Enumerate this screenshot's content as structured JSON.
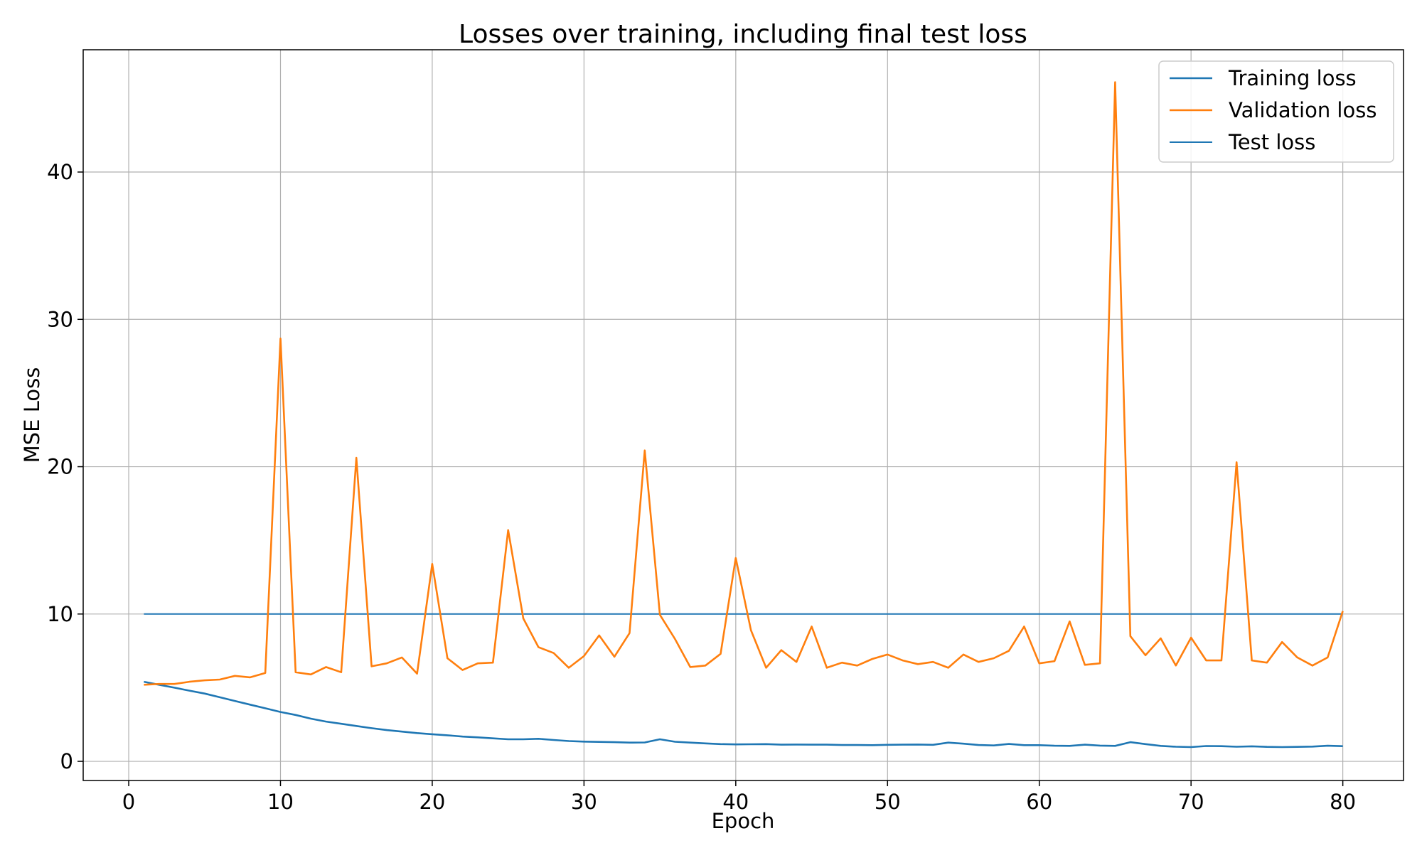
{
  "chart_data": {
    "type": "line",
    "title": "Losses over training, including final test loss",
    "xlabel": "Epoch",
    "ylabel": "MSE Loss",
    "xlim": [
      -3,
      84
    ],
    "ylim": [
      -1.3,
      48.3
    ],
    "xticks": [
      0,
      10,
      20,
      30,
      40,
      50,
      60,
      70,
      80
    ],
    "yticks": [
      0,
      10,
      20,
      30,
      40
    ],
    "grid": true,
    "legend_position": "top-right",
    "series": [
      {
        "name": "Training loss",
        "color": "#1f77b4",
        "x": [
          1,
          2,
          3,
          4,
          5,
          6,
          7,
          8,
          9,
          10,
          11,
          12,
          13,
          14,
          15,
          16,
          17,
          18,
          19,
          20,
          21,
          22,
          23,
          24,
          25,
          26,
          27,
          28,
          29,
          30,
          31,
          32,
          33,
          34,
          35,
          36,
          37,
          38,
          39,
          40,
          41,
          42,
          43,
          44,
          45,
          46,
          47,
          48,
          49,
          50,
          51,
          52,
          53,
          54,
          55,
          56,
          57,
          58,
          59,
          60,
          61,
          62,
          63,
          64,
          65,
          66,
          67,
          68,
          69,
          70,
          71,
          72,
          73,
          74,
          75,
          76,
          77,
          78,
          79,
          80
        ],
        "values": [
          5.4,
          5.2,
          5.0,
          4.8,
          4.6,
          4.35,
          4.1,
          3.85,
          3.6,
          3.35,
          3.15,
          2.9,
          2.7,
          2.55,
          2.4,
          2.25,
          2.12,
          2.02,
          1.92,
          1.84,
          1.77,
          1.68,
          1.63,
          1.56,
          1.5,
          1.5,
          1.53,
          1.45,
          1.38,
          1.34,
          1.32,
          1.3,
          1.27,
          1.28,
          1.5,
          1.33,
          1.27,
          1.22,
          1.17,
          1.15,
          1.16,
          1.17,
          1.13,
          1.14,
          1.13,
          1.13,
          1.11,
          1.11,
          1.1,
          1.12,
          1.13,
          1.14,
          1.12,
          1.27,
          1.2,
          1.11,
          1.08,
          1.18,
          1.1,
          1.1,
          1.06,
          1.05,
          1.13,
          1.07,
          1.05,
          1.3,
          1.17,
          1.05,
          0.99,
          0.97,
          1.04,
          1.03,
          0.99,
          1.02,
          0.98,
          0.97,
          0.98,
          1.0,
          1.06,
          1.03
        ]
      },
      {
        "name": "Validation loss",
        "color": "#ff7f0e",
        "x": [
          1,
          2,
          3,
          4,
          5,
          6,
          7,
          8,
          9,
          10,
          11,
          12,
          13,
          14,
          15,
          16,
          17,
          18,
          19,
          20,
          21,
          22,
          23,
          24,
          25,
          26,
          27,
          28,
          29,
          30,
          31,
          32,
          33,
          34,
          35,
          36,
          37,
          38,
          39,
          40,
          41,
          42,
          43,
          44,
          45,
          46,
          47,
          48,
          49,
          50,
          51,
          52,
          53,
          54,
          55,
          56,
          57,
          58,
          59,
          60,
          61,
          62,
          63,
          64,
          65,
          66,
          67,
          68,
          69,
          70,
          71,
          72,
          73,
          74,
          75,
          76,
          77,
          78,
          79,
          80
        ],
        "values": [
          5.2,
          5.25,
          5.25,
          5.4,
          5.5,
          5.55,
          5.8,
          5.7,
          6.0,
          28.7,
          6.05,
          5.9,
          6.4,
          6.05,
          20.6,
          6.45,
          6.65,
          7.05,
          5.95,
          13.4,
          7.0,
          6.2,
          6.65,
          6.7,
          15.7,
          9.7,
          7.75,
          7.35,
          6.35,
          7.15,
          8.55,
          7.1,
          8.7,
          21.1,
          9.95,
          8.3,
          6.4,
          6.5,
          7.3,
          13.8,
          8.9,
          6.35,
          7.55,
          6.75,
          9.15,
          6.35,
          6.7,
          6.5,
          6.95,
          7.25,
          6.85,
          6.6,
          6.75,
          6.35,
          7.25,
          6.75,
          7.0,
          7.5,
          9.15,
          6.65,
          6.8,
          9.5,
          6.55,
          6.65,
          46.1,
          8.5,
          7.2,
          8.35,
          6.5,
          8.4,
          6.85,
          6.85,
          20.3,
          6.85,
          6.7,
          8.1,
          7.05,
          6.5,
          7.05,
          10.2
        ]
      },
      {
        "name": "Test loss",
        "color": "#1f77b4",
        "x": [
          1,
          80
        ],
        "values": [
          10.0,
          10.0
        ]
      }
    ]
  }
}
